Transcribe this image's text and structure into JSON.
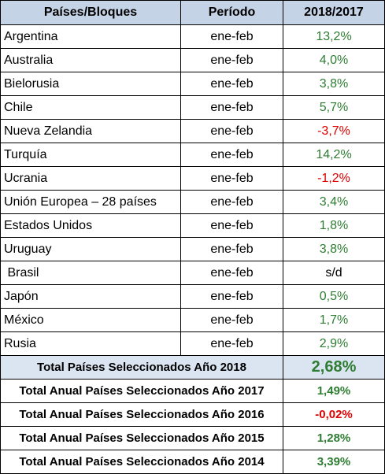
{
  "header": {
    "col1": "Países/Bloques",
    "col2": "Período",
    "col3": "2018/2017"
  },
  "rows": [
    {
      "country": "Argentina",
      "period": "ene-feb",
      "value": "13,2%",
      "status": "pos"
    },
    {
      "country": "Australia",
      "period": "ene-feb",
      "value": "4,0%",
      "status": "pos"
    },
    {
      "country": "Bielorusia",
      "period": "ene-feb",
      "value": "3,8%",
      "status": "pos"
    },
    {
      "country": "Chile",
      "period": "ene-feb",
      "value": "5,7%",
      "status": "pos"
    },
    {
      "country": "Nueva Zelandia",
      "period": "ene-feb",
      "value": "-3,7%",
      "status": "neg"
    },
    {
      "country": "Turquía",
      "period": "ene-feb",
      "value": "14,2%",
      "status": "pos"
    },
    {
      "country": "Ucrania",
      "period": "ene-feb",
      "value": "-1,2%",
      "status": "neg"
    },
    {
      "country": "Unión Europea – 28 países",
      "period": "ene-feb",
      "value": "3,4%",
      "status": "pos"
    },
    {
      "country": "Estados Unidos",
      "period": "ene-feb",
      "value": "1,8%",
      "status": "pos"
    },
    {
      "country": "Uruguay",
      "period": "ene-feb",
      "value": "3,8%",
      "status": "pos"
    },
    {
      "country": " Brasil",
      "period": "ene-feb",
      "value": "s/d",
      "status": "neu"
    },
    {
      "country": "Japón",
      "period": "ene-feb",
      "value": "0,5%",
      "status": "pos"
    },
    {
      "country": "México",
      "period": "ene-feb",
      "value": "1,7%",
      "status": "pos"
    },
    {
      "country": "Rusia",
      "period": "ene-feb",
      "value": "2,9%",
      "status": "pos"
    }
  ],
  "totals": [
    {
      "label": "Total Países Seleccionados Año 2018",
      "value": "2,68%",
      "status": "pos"
    },
    {
      "label": "Total Anual Países Seleccionados Año 2017",
      "value": "1,49%",
      "status": "pos"
    },
    {
      "label": "Total Anual Países Seleccionados Año 2016",
      "value": "-0,02%",
      "status": "neg"
    },
    {
      "label": "Total Anual Países Seleccionados Año 2015",
      "value": "1,28%",
      "status": "pos"
    },
    {
      "label": "Total Anual Países Seleccionados Año 2014",
      "value": "3,39%",
      "status": "pos"
    }
  ],
  "colors": {
    "header_bg": "#c5d3e6",
    "highlight_bg": "#dbe5f1",
    "positive": "#2e7d32",
    "negative": "#e00000"
  }
}
